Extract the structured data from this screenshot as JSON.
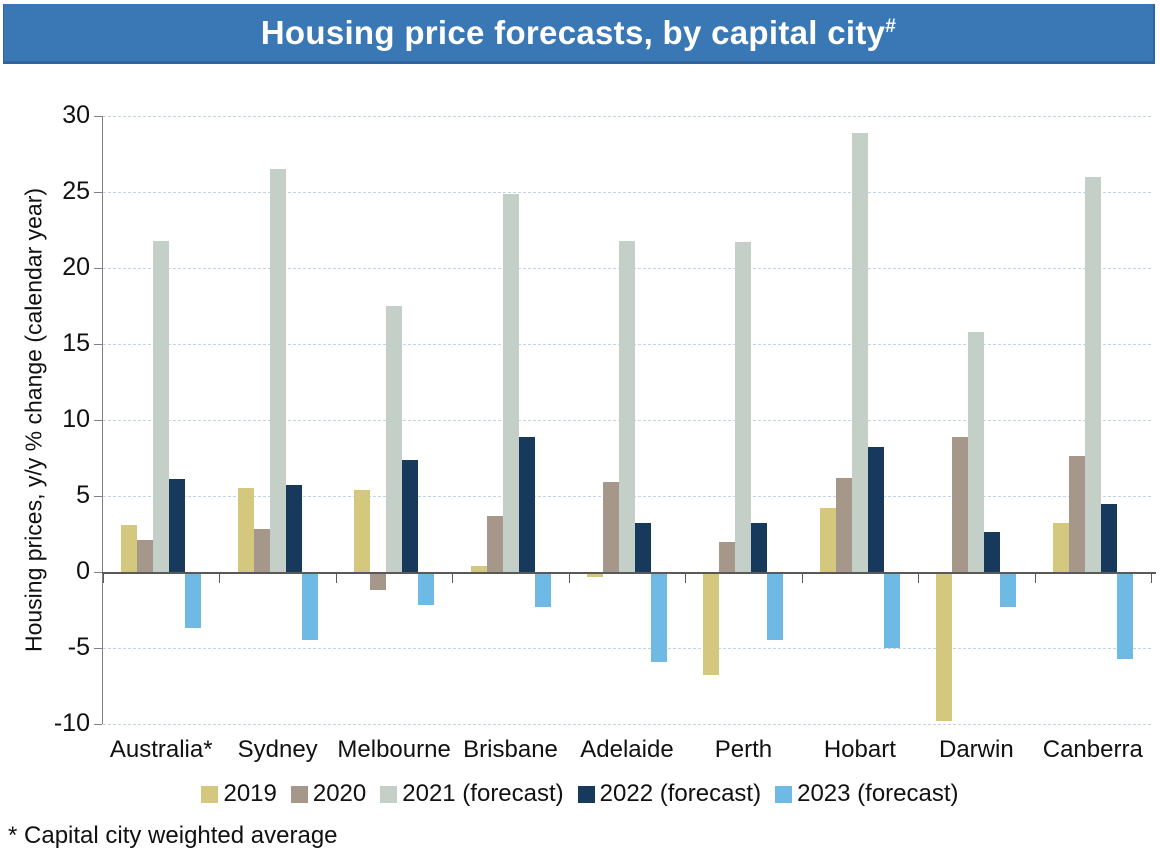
{
  "title": {
    "text": "Housing price forecasts, by capital city",
    "superscript": "#"
  },
  "footnote": "* Capital city weighted average",
  "colors": {
    "banner_bg": "#3A78B5",
    "banner_border": "#2F649E",
    "banner_text": "#FFFFFF",
    "axis": "#595959",
    "gridline": "#C2D4E4",
    "series_2019": "#D3C87E",
    "series_2020": "#A5988A",
    "series_2021": "#C4D0C7",
    "series_2022": "#173A5C",
    "series_2023": "#6FBAE5"
  },
  "chart_data": {
    "type": "bar",
    "title": "Housing price forecasts, by capital city#",
    "ylabel": "Housing prices, y/y % change (calendar year)",
    "xlabel": "",
    "ylim": [
      -10,
      30
    ],
    "yticks": [
      30,
      25,
      20,
      15,
      10,
      5,
      0,
      -5,
      -10
    ],
    "grid": "horizontal-dashed",
    "legend_position": "bottom",
    "categories": [
      "Australia*",
      "Sydney",
      "Melbourne",
      "Brisbane",
      "Adelaide",
      "Perth",
      "Hobart",
      "Darwin",
      "Canberra"
    ],
    "series": [
      {
        "name": "2019",
        "color": "#D3C87E",
        "values": [
          3.1,
          5.5,
          5.4,
          0.4,
          -0.3,
          -6.8,
          4.2,
          -9.8,
          3.2
        ]
      },
      {
        "name": "2020",
        "color": "#A5988A",
        "values": [
          2.1,
          2.8,
          -1.2,
          3.7,
          5.9,
          2.0,
          6.2,
          8.9,
          7.6
        ]
      },
      {
        "name": "2021 (forecast)",
        "color": "#C4D0C7",
        "values": [
          21.8,
          26.5,
          17.5,
          24.9,
          21.8,
          21.7,
          28.9,
          15.8,
          26.0
        ]
      },
      {
        "name": "2022 (forecast)",
        "color": "#173A5C",
        "values": [
          6.1,
          5.7,
          7.4,
          8.9,
          3.2,
          3.2,
          8.2,
          2.6,
          4.5
        ]
      },
      {
        "name": "2023 (forecast)",
        "color": "#6FBAE5",
        "values": [
          -3.7,
          -4.5,
          -2.2,
          -2.3,
          -5.9,
          -4.5,
          -5.0,
          -2.3,
          -5.7
        ]
      }
    ]
  }
}
